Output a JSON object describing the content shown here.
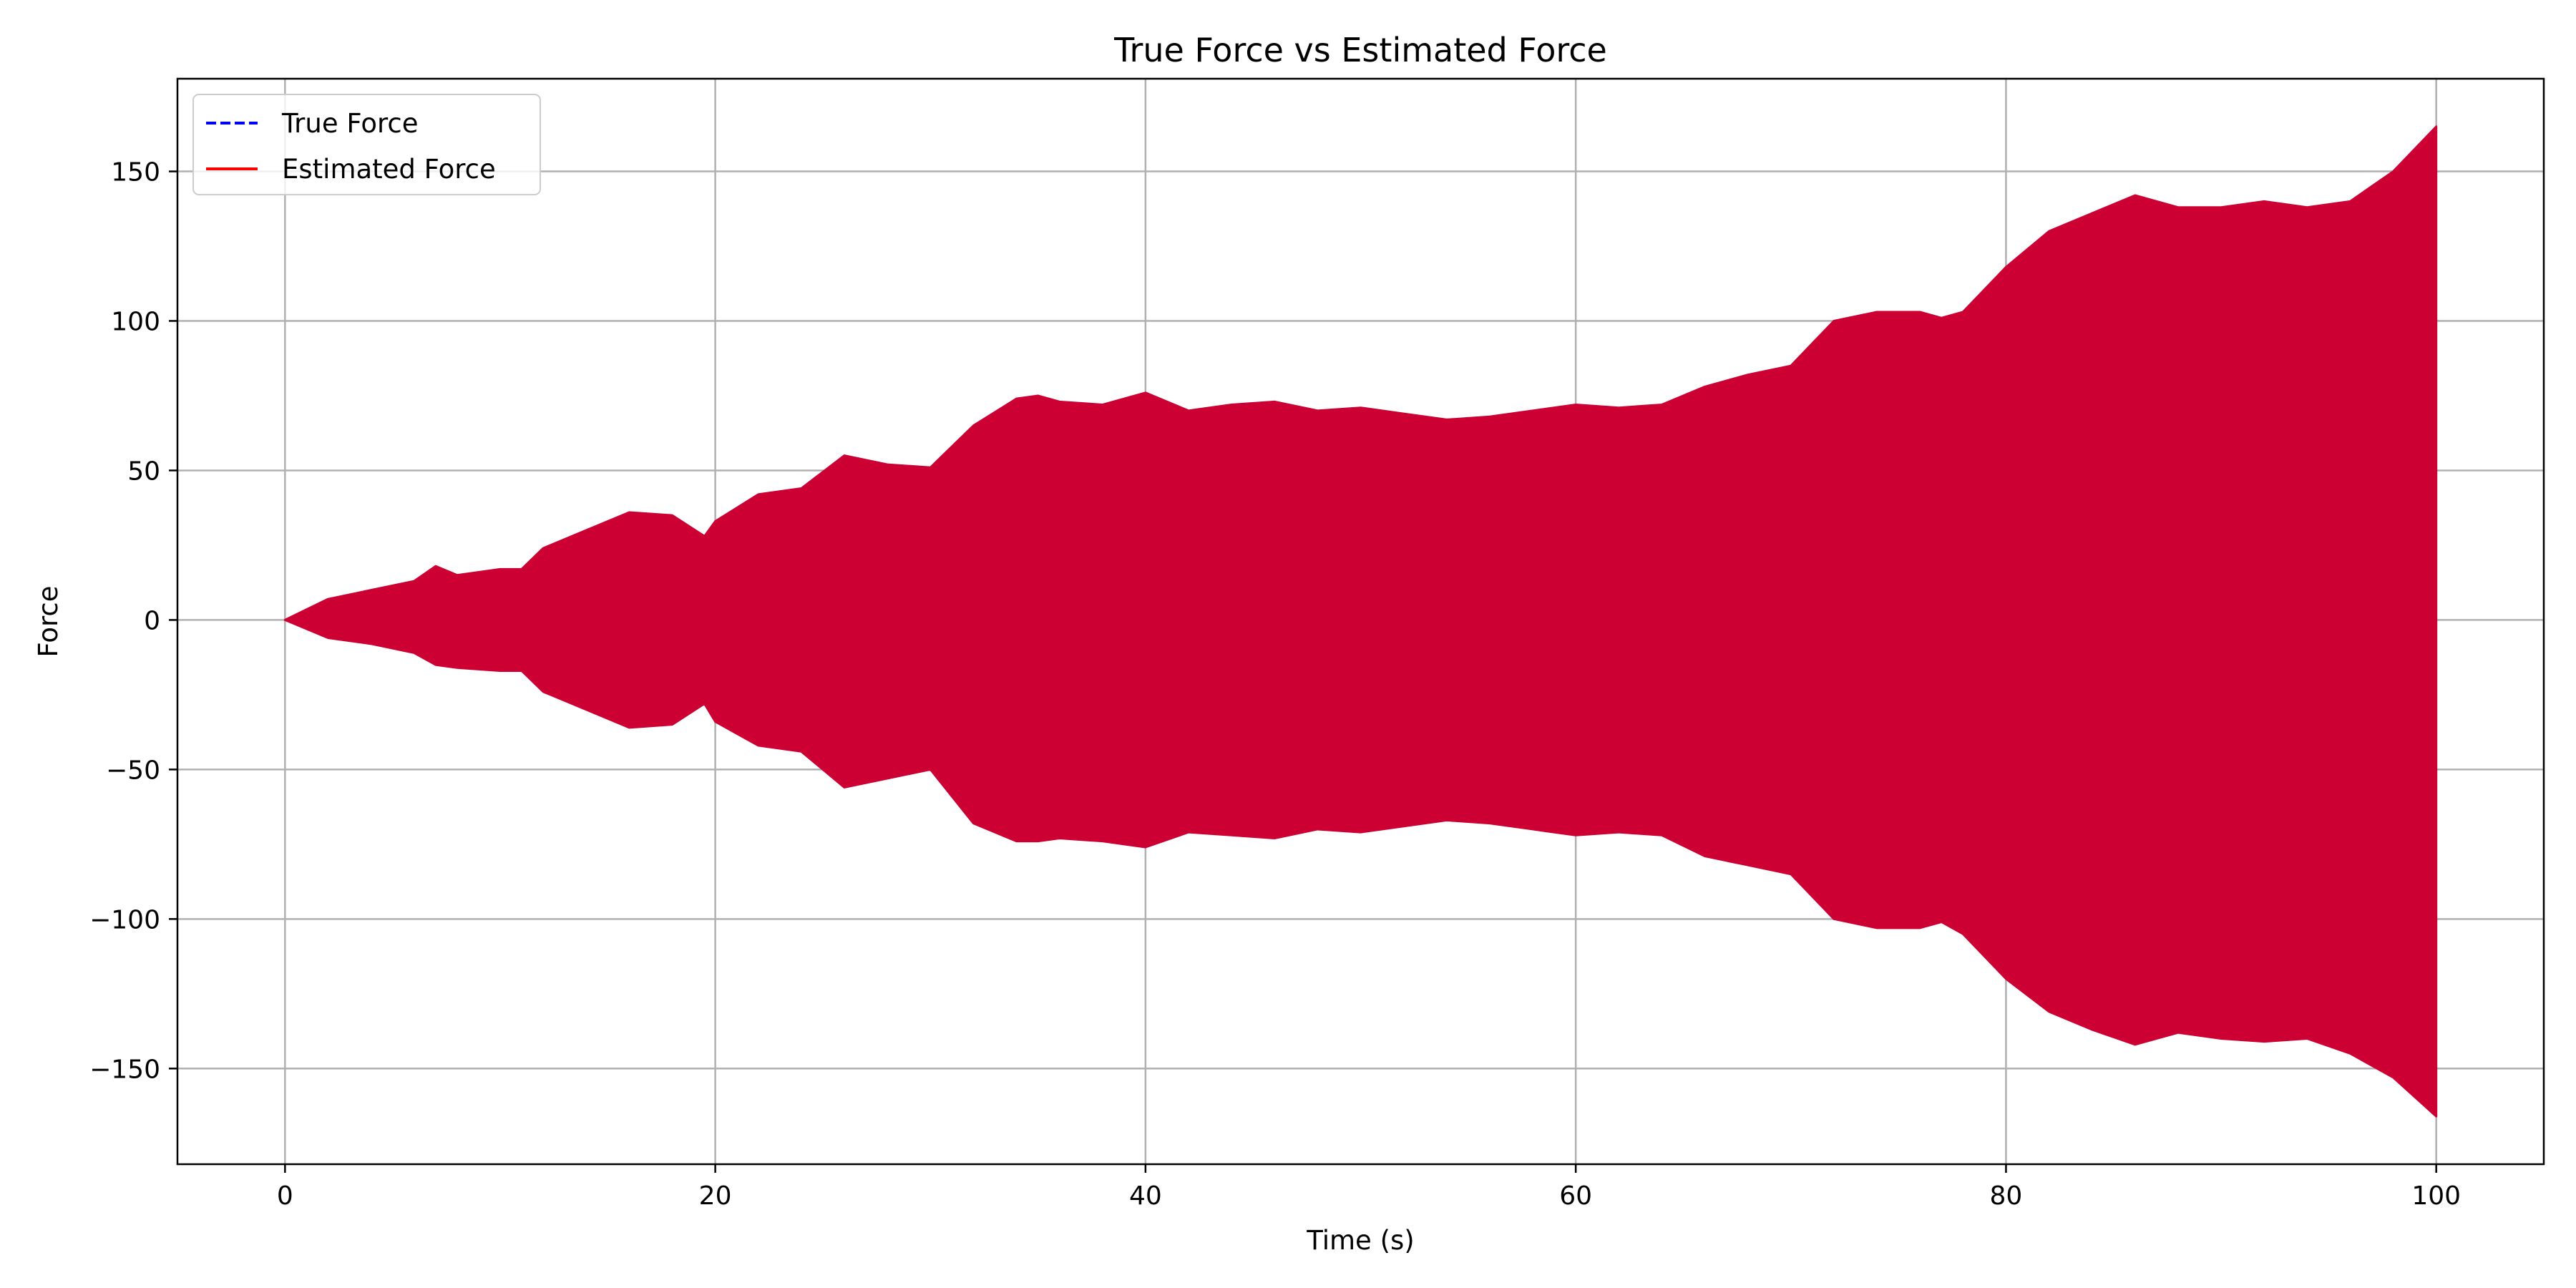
{
  "chart_data": {
    "type": "line",
    "title": "True Force vs Estimated Force",
    "xlabel": "Time (s)",
    "ylabel": "Force",
    "xlim": [
      -5,
      105
    ],
    "ylim": [
      -182,
      181
    ],
    "xticks": [
      0,
      20,
      40,
      60,
      80,
      100
    ],
    "yticks": [
      -150,
      -100,
      -50,
      0,
      50,
      100,
      150
    ],
    "xtick_labels": [
      "0",
      "20",
      "40",
      "60",
      "80",
      "100"
    ],
    "ytick_labels": [
      "−150",
      "−100",
      "−50",
      "0",
      "50",
      "100",
      "150"
    ],
    "grid": true,
    "legend": {
      "placement": "top-left"
    },
    "series": [
      {
        "name": "True Force",
        "color": "#0000ff",
        "style": "dashed"
      },
      {
        "name": "Estimated Force",
        "color": "#ff0000",
        "style": "solid"
      }
    ],
    "fill_color": "#cc0033",
    "envelope": {
      "t": [
        0,
        2,
        4,
        6,
        7,
        8,
        10,
        11,
        12,
        14,
        16,
        18,
        19.5,
        20,
        22,
        24,
        26,
        28,
        30,
        32,
        34,
        35,
        36,
        38,
        40,
        42,
        44,
        46,
        48,
        50,
        52,
        54,
        56,
        58,
        60,
        62,
        64,
        66,
        68,
        70,
        72,
        74,
        76,
        77,
        78,
        80,
        82,
        84,
        86,
        88,
        90,
        92,
        94,
        96,
        98,
        100
      ],
      "upper": [
        0,
        7,
        10,
        13,
        18,
        15,
        17,
        17,
        24,
        30,
        36,
        35,
        28,
        33,
        42,
        44,
        55,
        52,
        51,
        65,
        74,
        75,
        73,
        72,
        76,
        70,
        72,
        73,
        70,
        71,
        69,
        67,
        68,
        70,
        72,
        71,
        72,
        78,
        82,
        85,
        100,
        103,
        103,
        101,
        103,
        118,
        130,
        136,
        142,
        138,
        138,
        140,
        138,
        140,
        150,
        165
      ],
      "lower": [
        0,
        -6,
        -8,
        -11,
        -15,
        -16,
        -17,
        -17,
        -24,
        -30,
        -36,
        -35,
        -28,
        -34,
        -42,
        -44,
        -56,
        -53,
        -50,
        -68,
        -74,
        -74,
        -73,
        -74,
        -76,
        -71,
        -72,
        -73,
        -70,
        -71,
        -69,
        -67,
        -68,
        -70,
        -72,
        -71,
        -72,
        -79,
        -82,
        -85,
        -100,
        -103,
        -103,
        -101,
        -105,
        -120,
        -131,
        -137,
        -142,
        -138,
        -140,
        -141,
        -140,
        -145,
        -153,
        -166
      ]
    }
  }
}
